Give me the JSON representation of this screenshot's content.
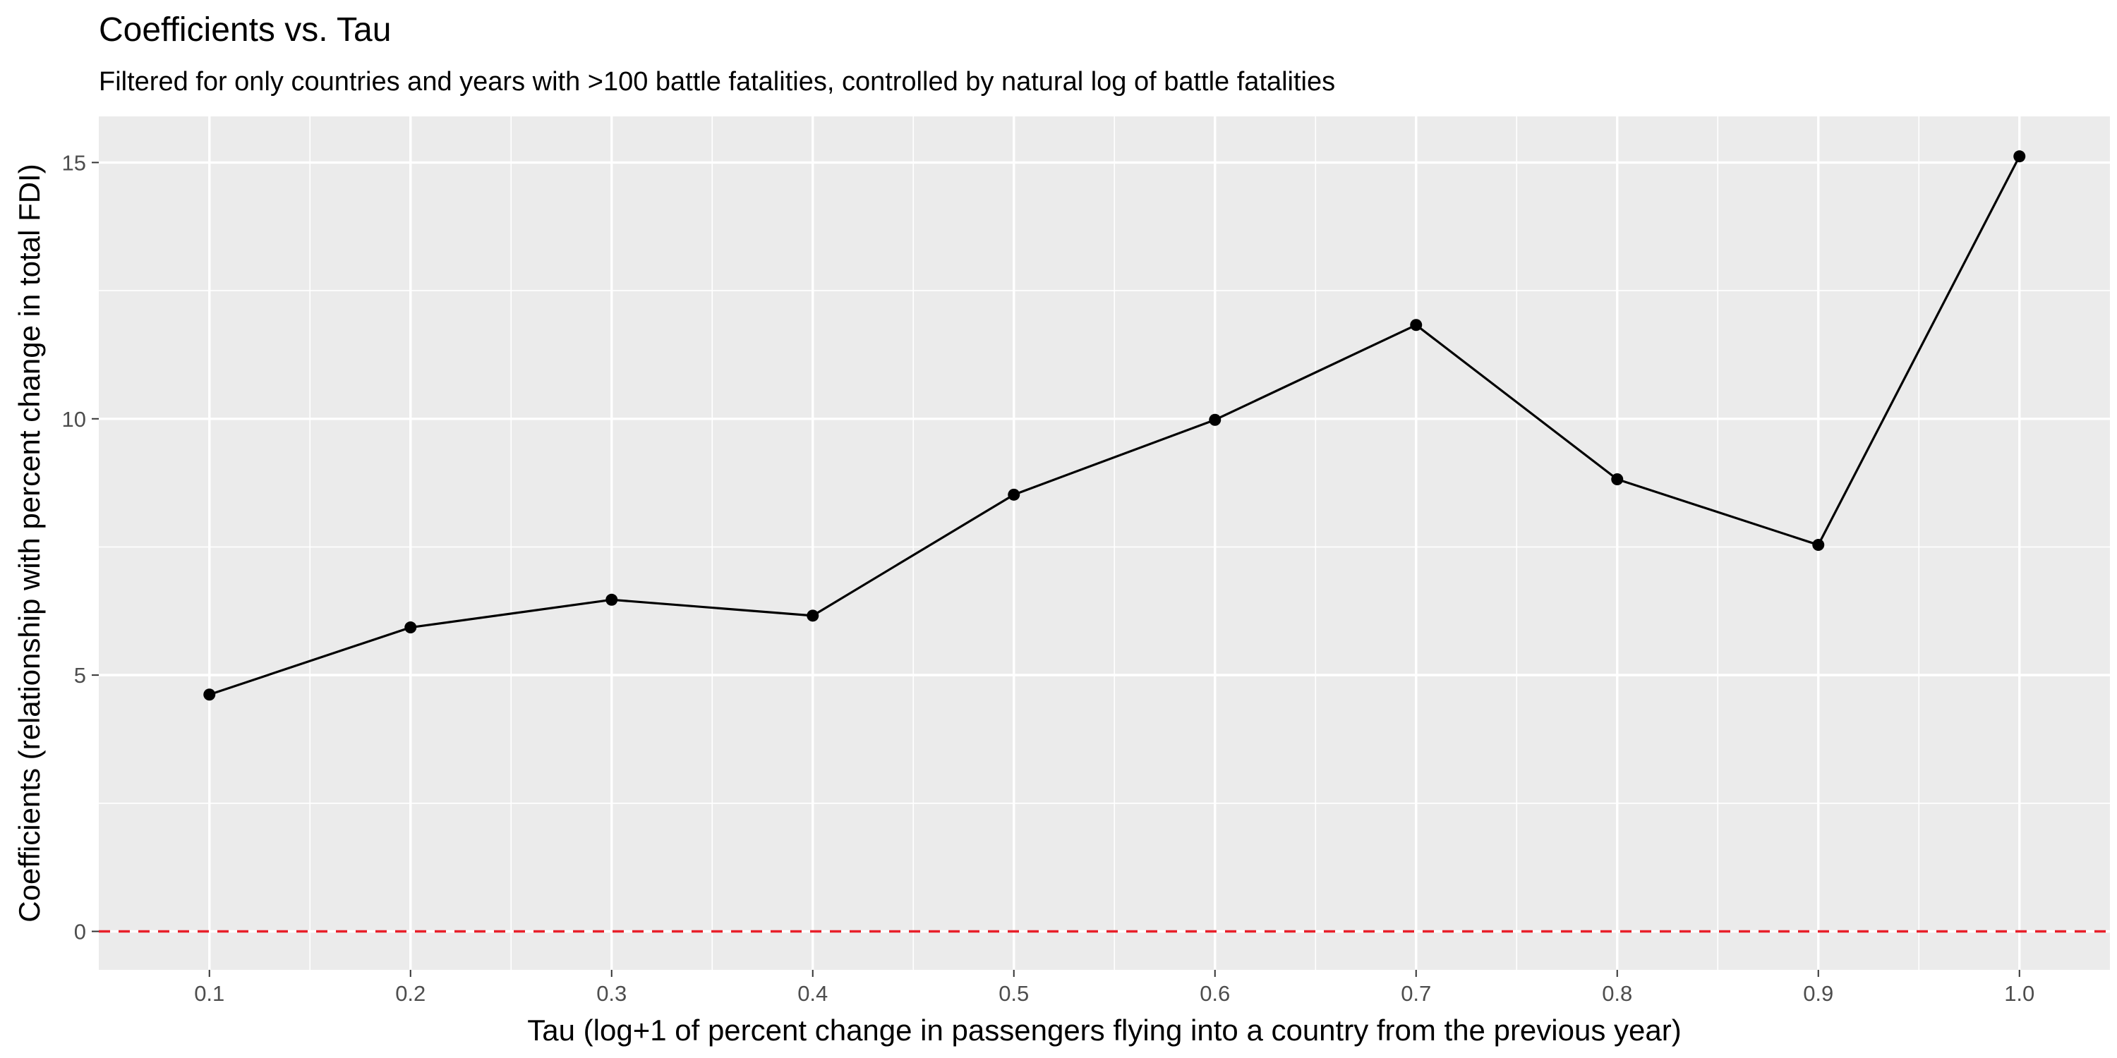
{
  "chart_data": {
    "type": "line",
    "title": "Coefficients vs. Tau",
    "subtitle": "Filtered for only countries and years with >100 battle fatalities, controlled by natural log of battle fatalities",
    "xlabel": "Tau (log+1 of percent change in passengers flying into a country from the previous year)",
    "ylabel": "Coefficients (relationship with percent change in total FDI)",
    "x": [
      0.1,
      0.2,
      0.3,
      0.4,
      0.5,
      0.6,
      0.7,
      0.8,
      0.9,
      1.0
    ],
    "series": [
      {
        "values": [
          4.62,
          5.93,
          6.47,
          6.16,
          8.52,
          9.98,
          11.83,
          8.82,
          7.54,
          15.12
        ]
      }
    ],
    "xlim": [
      0.045,
      1.045
    ],
    "ylim": [
      -0.75,
      15.9
    ],
    "x_ticks": [
      0.1,
      0.2,
      0.3,
      0.4,
      0.5,
      0.6,
      0.7,
      0.8,
      0.9,
      1.0
    ],
    "x_tick_labels": [
      "0.1",
      "0.2",
      "0.3",
      "0.4",
      "0.5",
      "0.6",
      "0.7",
      "0.8",
      "0.9",
      "1.0"
    ],
    "y_ticks": [
      0,
      5,
      10,
      15
    ],
    "y_tick_labels": [
      "0",
      "5",
      "10",
      "15"
    ],
    "reference_line": {
      "y": 0,
      "style": "dashed",
      "color": "#e8202a"
    },
    "grid": true,
    "legend": "none",
    "colors": {
      "panel": "#ebebeb",
      "grid": "#ffffff",
      "line": "#000000",
      "point": "#000000"
    }
  }
}
